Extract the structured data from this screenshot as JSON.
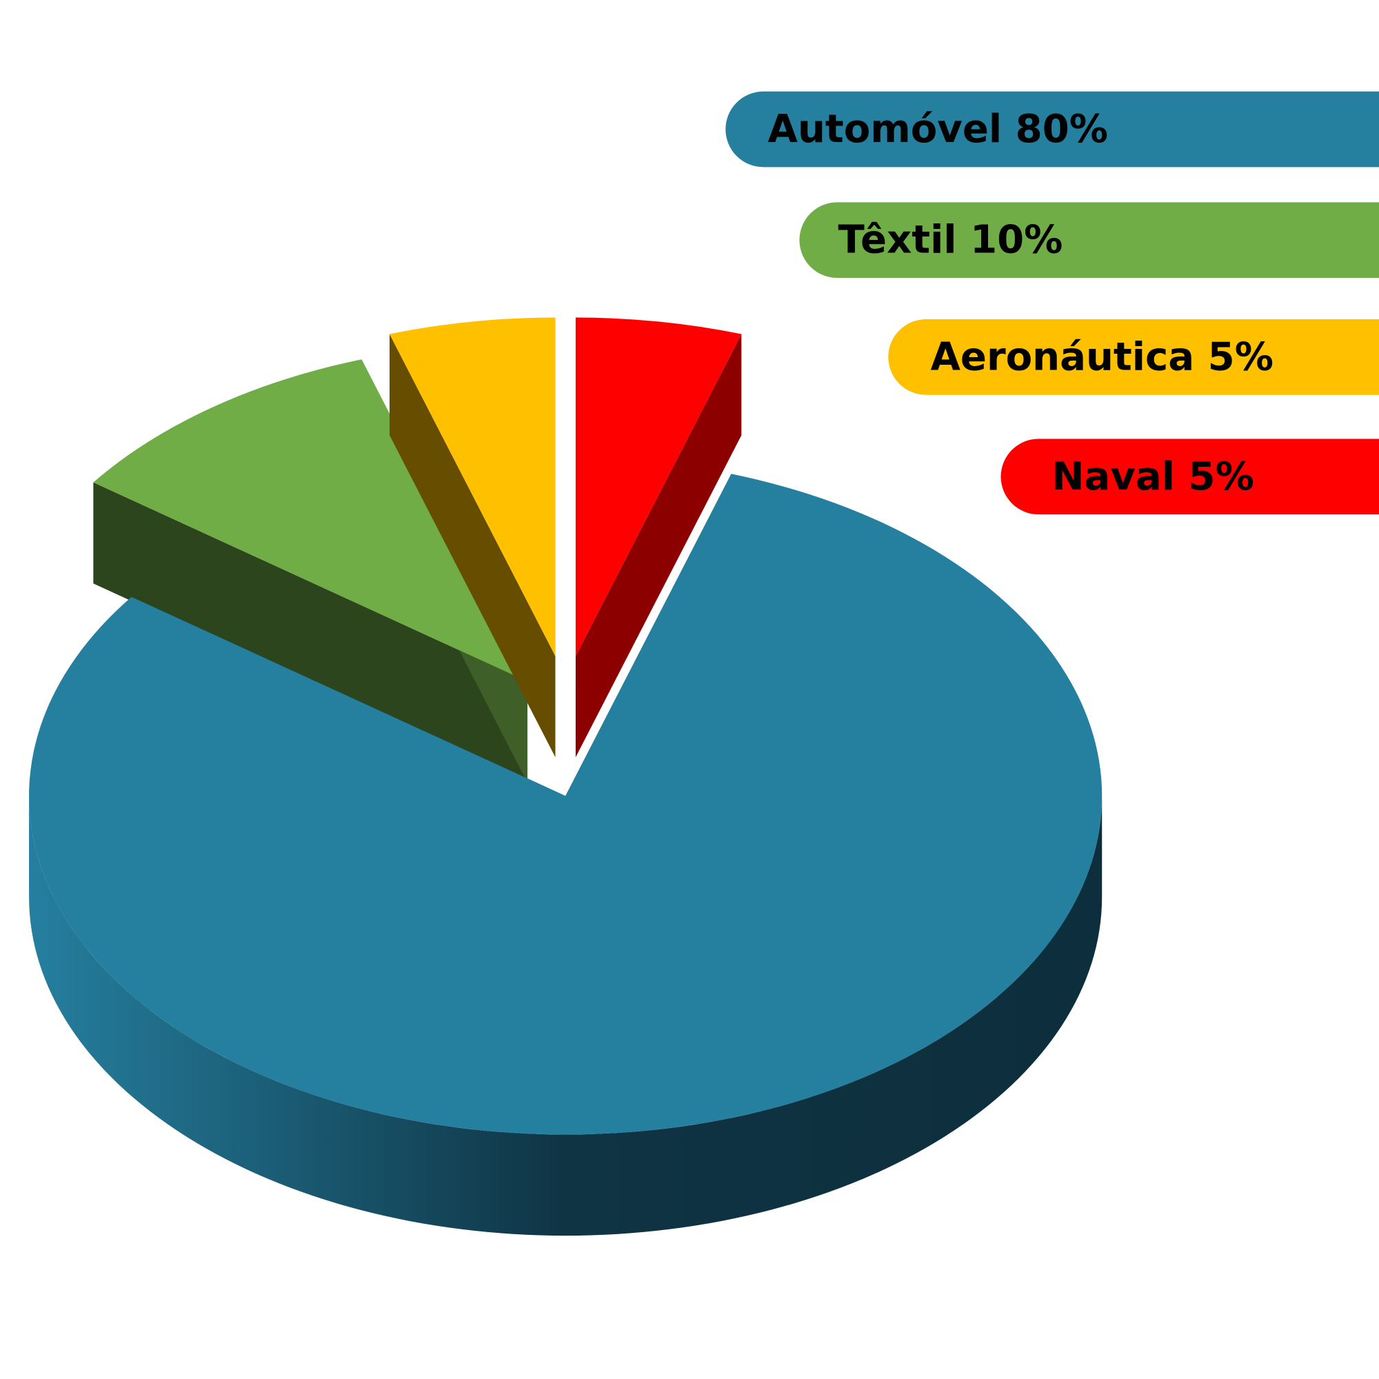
{
  "chart_data": {
    "type": "pie",
    "categories": [
      "Automóvel",
      "Têxtil",
      "Aeronáutica",
      "Naval"
    ],
    "values": [
      80,
      10,
      5,
      5
    ],
    "value_labels": [
      "80%",
      "10%",
      "5%",
      "5%"
    ],
    "colors": [
      "#257f9f",
      "#70ad47",
      "#ffc000",
      "#ff0000"
    ]
  }
}
